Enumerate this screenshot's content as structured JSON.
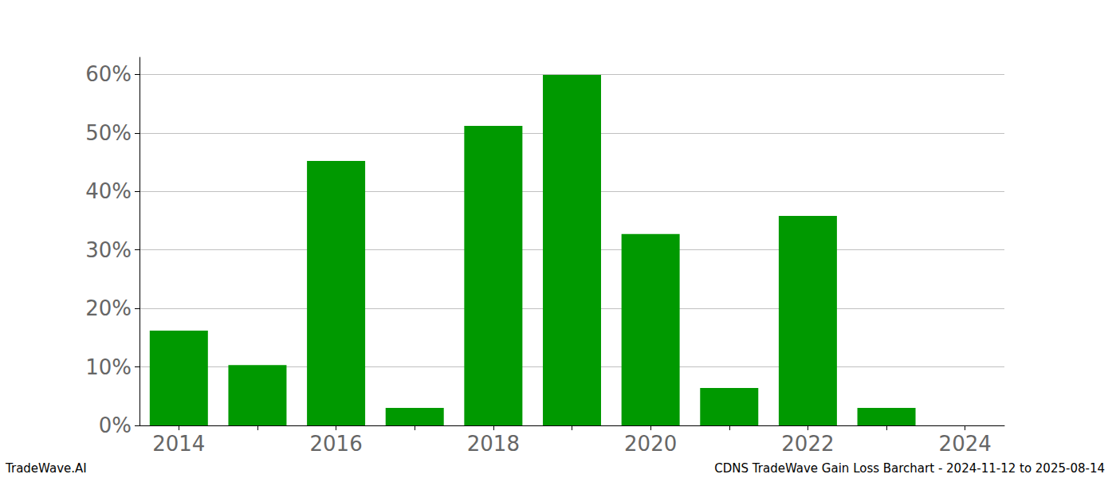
{
  "chart_data": {
    "type": "bar",
    "categories": [
      "2014",
      null,
      "2016",
      null,
      "2018",
      null,
      "2020",
      null,
      "2022",
      null,
      "2024"
    ],
    "values": [
      16.2,
      10.3,
      45.2,
      3.0,
      51.2,
      59.9,
      32.7,
      6.4,
      35.8,
      3.0,
      0
    ],
    "color": "#009900",
    "ylim": [
      0,
      62.9
    ],
    "yticks": [
      {
        "value": 0,
        "label": "0%"
      },
      {
        "value": 10,
        "label": "10%"
      },
      {
        "value": 20,
        "label": "20%"
      },
      {
        "value": 30,
        "label": "30%"
      },
      {
        "value": 40,
        "label": "40%"
      },
      {
        "value": 50,
        "label": "50%"
      },
      {
        "value": 60,
        "label": "60%"
      }
    ],
    "grid": true,
    "annotations": [
      "TradeWave.AI",
      "CDNS TradeWave Gain Loss Barchart - 2024-11-12 to 2025-08-14"
    ]
  }
}
